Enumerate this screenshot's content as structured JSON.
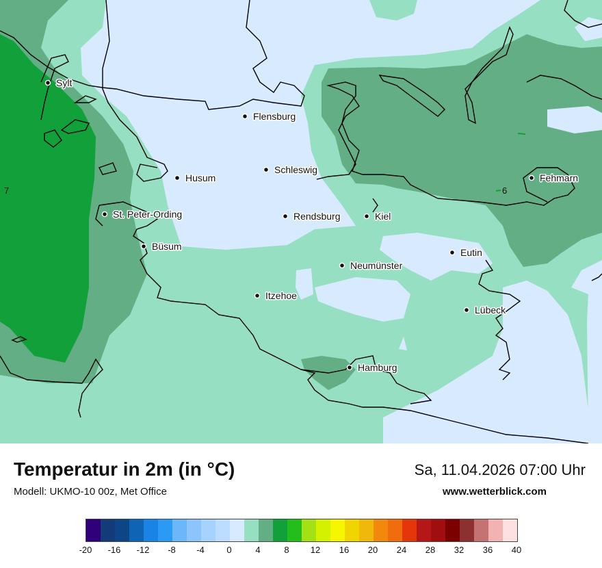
{
  "map": {
    "cities": [
      {
        "name": "Sylt"
      },
      {
        "name": "Flensburg"
      },
      {
        "name": "Husum"
      },
      {
        "name": "Schleswig"
      },
      {
        "name": "St. Peter-Ording"
      },
      {
        "name": "Rendsburg"
      },
      {
        "name": "Kiel"
      },
      {
        "name": "Fehmarn"
      },
      {
        "name": "Büsum"
      },
      {
        "name": "Neumünster"
      },
      {
        "name": "Eutin"
      },
      {
        "name": "Itzehoe"
      },
      {
        "name": "Lübeck"
      },
      {
        "name": "Hamburg"
      }
    ],
    "isoline_labels": [
      "7",
      "6"
    ],
    "colors": {
      "very_light_blue": "#d8eafe",
      "light_mint": "#97dfc2",
      "medium_green": "#63ae84",
      "bright_green": "#11a03a"
    }
  },
  "footer": {
    "title": "Temperatur in 2m (in °C)",
    "model": "Modell: UKMO-10 00z, Met Office",
    "datetime": "Sa, 11.04.2026 07:00 Uhr",
    "site": "www.wetterblick.com"
  },
  "legend": {
    "colors": [
      "#30007a",
      "#133b7a",
      "#0d4686",
      "#0e64b5",
      "#1a84e6",
      "#2a9af4",
      "#6cb7fa",
      "#8cc4fb",
      "#a6d2fd",
      "#bcddfe",
      "#d8eafe",
      "#97dfc2",
      "#63ae84",
      "#11a03a",
      "#24be1c",
      "#a3e014",
      "#d3f100",
      "#f5f600",
      "#f0d500",
      "#f1b80c",
      "#f2880c",
      "#f06c0c",
      "#e5360b",
      "#b51616",
      "#a20e10",
      "#7b0000",
      "#8c3030",
      "#c47272",
      "#f2b2b2",
      "#fde0e0"
    ],
    "ticks": [
      "-20",
      "-16",
      "-12",
      "-8",
      "-4",
      "0",
      "4",
      "8",
      "12",
      "16",
      "20",
      "24",
      "28",
      "32",
      "36",
      "40"
    ]
  }
}
